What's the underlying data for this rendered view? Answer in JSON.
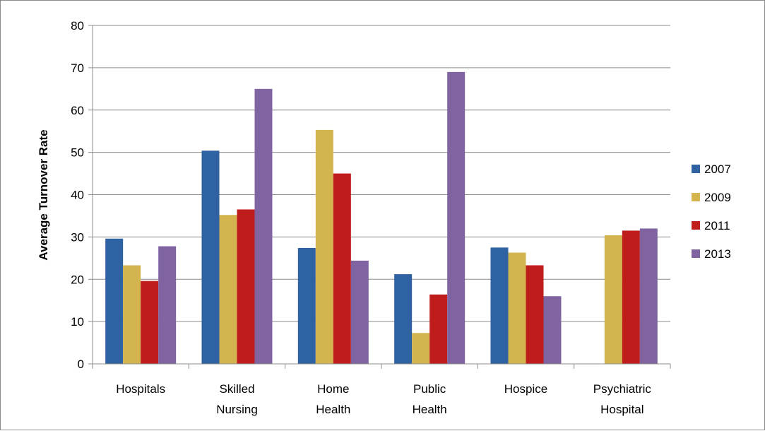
{
  "chart_data": {
    "type": "bar",
    "categories": [
      [
        "Hospitals"
      ],
      [
        "Skilled",
        "Nursing"
      ],
      [
        "Home",
        "Health"
      ],
      [
        "Public",
        "Health"
      ],
      [
        "Hospice"
      ],
      [
        "Psychiatric",
        "Hospital"
      ]
    ],
    "series": [
      {
        "name": "2007",
        "color": "#2e62a3",
        "values": [
          29.6,
          50.4,
          27.4,
          21.2,
          27.5,
          null
        ]
      },
      {
        "name": "2009",
        "color": "#d4b44f",
        "values": [
          23.3,
          35.2,
          55.3,
          7.3,
          26.3,
          30.4
        ]
      },
      {
        "name": "2011",
        "color": "#bf1c1c",
        "values": [
          19.6,
          36.5,
          45.0,
          16.4,
          23.3,
          31.5
        ]
      },
      {
        "name": "2013",
        "color": "#8064a2",
        "values": [
          27.8,
          65.0,
          24.4,
          69.0,
          16.0,
          32.0
        ]
      }
    ],
    "ylabel": "Average Turnover Rate",
    "ylim": [
      0,
      80
    ],
    "yticks": [
      0,
      10,
      20,
      30,
      40,
      50,
      60,
      70,
      80
    ],
    "grid": true,
    "legend_position": "right"
  }
}
